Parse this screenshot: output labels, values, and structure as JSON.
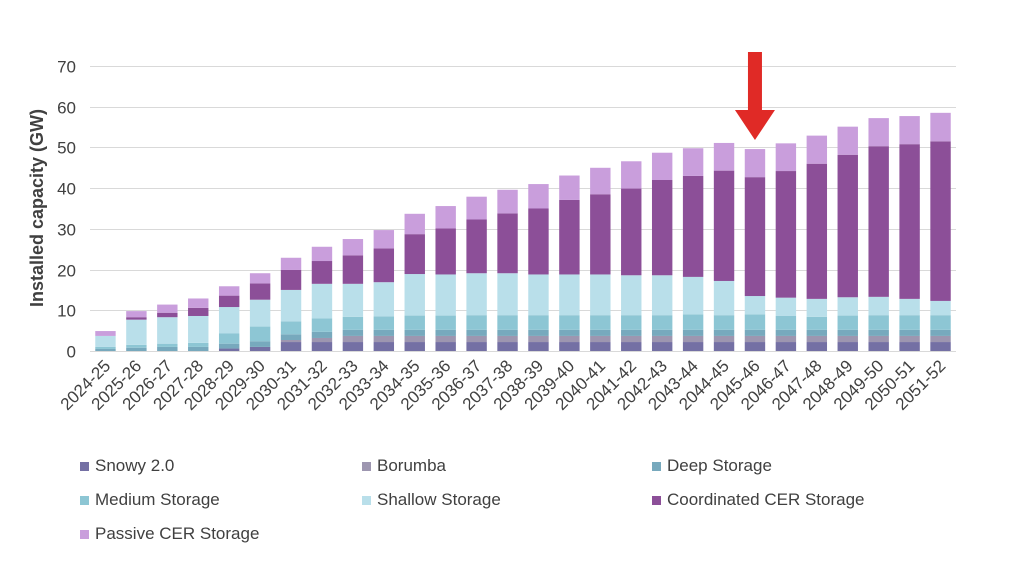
{
  "chart_data": {
    "type": "bar",
    "stacked": true,
    "title": "",
    "xlabel": "",
    "ylabel": "Installed capacity (GW)",
    "ylim": [
      0,
      70
    ],
    "yticks": [
      0,
      10,
      20,
      30,
      40,
      50,
      60,
      70
    ],
    "grid": true,
    "legend_position": "bottom",
    "categories": [
      "2024-25",
      "2025-26",
      "2026-27",
      "2027-28",
      "2028-29",
      "2029-30",
      "2030-31",
      "2031-32",
      "2032-33",
      "2033-34",
      "2034-35",
      "2035-36",
      "2036-37",
      "2037-38",
      "2038-39",
      "2039-40",
      "2040-41",
      "2041-42",
      "2042-43",
      "2043-44",
      "2044-45",
      "2045-46",
      "2046-47",
      "2047-48",
      "2048-49",
      "2049-50",
      "2050-51",
      "2051-52"
    ],
    "series": [
      {
        "name": "Snowy 2.0",
        "color": "#7470a4",
        "values": [
          0,
          0,
          0,
          0,
          0.6,
          1.0,
          2.2,
          2.2,
          2.2,
          2.2,
          2.2,
          2.2,
          2.2,
          2.2,
          2.2,
          2.2,
          2.2,
          2.2,
          2.2,
          2.2,
          2.2,
          2.2,
          2.2,
          2.2,
          2.2,
          2.2,
          2.2,
          2.2
        ]
      },
      {
        "name": "Borumba",
        "color": "#9d96b0",
        "values": [
          0,
          0,
          0,
          0,
          0,
          0,
          0.5,
          1.0,
          1.5,
          1.5,
          1.5,
          1.5,
          1.5,
          1.5,
          1.5,
          1.5,
          1.5,
          1.5,
          1.5,
          1.5,
          1.5,
          1.5,
          1.5,
          1.5,
          1.5,
          1.5,
          1.5,
          1.5
        ]
      },
      {
        "name": "Deep Storage",
        "color": "#77a9bd",
        "values": [
          0.5,
          0.8,
          1.0,
          1.0,
          1.2,
          1.4,
          1.4,
          1.5,
          1.5,
          1.5,
          1.5,
          1.5,
          1.5,
          1.5,
          1.5,
          1.5,
          1.5,
          1.5,
          1.5,
          1.5,
          1.5,
          1.5,
          1.5,
          1.5,
          1.5,
          1.5,
          1.5,
          1.5
        ]
      },
      {
        "name": "Medium Storage",
        "color": "#8dc6d4",
        "values": [
          0.5,
          0.7,
          0.8,
          1.0,
          2.5,
          3.6,
          3.2,
          3.3,
          3.2,
          3.3,
          3.5,
          3.5,
          3.6,
          3.6,
          3.6,
          3.6,
          3.6,
          3.6,
          3.6,
          3.8,
          3.6,
          3.8,
          3.4,
          3.2,
          3.5,
          3.6,
          3.6,
          3.6
        ]
      },
      {
        "name": "Shallow Storage",
        "color": "#b9dfea",
        "values": [
          2.7,
          6.2,
          6.5,
          6.6,
          6.5,
          6.6,
          7.7,
          8.5,
          8.1,
          8.4,
          10.2,
          10.1,
          10.3,
          10.3,
          10.0,
          10.0,
          10.0,
          9.8,
          9.8,
          9.2,
          8.4,
          4.5,
          4.5,
          4.4,
          4.5,
          4.5,
          4.0,
          3.5
        ]
      },
      {
        "name": "Coordinated CER Storage",
        "color": "#8c4f98",
        "values": [
          0,
          0.6,
          1.1,
          2.0,
          2.8,
          4.0,
          4.9,
          5.6,
          7.0,
          8.3,
          9.8,
          11.3,
          13.2,
          14.7,
          16.2,
          18.3,
          19.7,
          21.3,
          23.4,
          24.8,
          27.1,
          29.2,
          31.1,
          33.2,
          35.0,
          37.0,
          38.0,
          39.2
        ]
      },
      {
        "name": "Passive CER Storage",
        "color": "#c99edc",
        "values": [
          1.2,
          1.5,
          2.0,
          2.3,
          2.3,
          2.5,
          3.0,
          3.5,
          4.0,
          4.5,
          5.0,
          5.5,
          5.6,
          5.8,
          6.0,
          6.0,
          6.5,
          6.7,
          6.7,
          6.8,
          6.8,
          6.9,
          6.8,
          6.9,
          6.9,
          6.9,
          6.9,
          7.0
        ]
      }
    ],
    "annotations": [
      {
        "type": "arrow",
        "color": "#e02a26",
        "points_to": "2045-46"
      }
    ]
  }
}
